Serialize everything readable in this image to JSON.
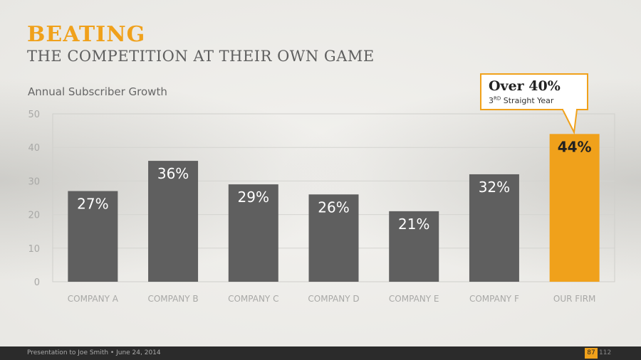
{
  "header": {
    "title": "BEATING",
    "subtitle": "THE COMPETITION AT THEIR OWN GAME"
  },
  "chart_data": {
    "type": "bar",
    "title": "Annual Subscriber Growth",
    "categories": [
      "COMPANY A",
      "COMPANY B",
      "COMPANY C",
      "COMPANY D",
      "COMPANY E",
      "COMPANY F",
      "OUR FIRM"
    ],
    "values": [
      27,
      36,
      29,
      26,
      21,
      32,
      44
    ],
    "labels": [
      "27%",
      "36%",
      "29%",
      "26%",
      "21%",
      "32%",
      "44%"
    ],
    "yticks": [
      "0",
      "10",
      "20",
      "30",
      "40",
      "50"
    ],
    "ylim": [
      0,
      50
    ],
    "grid": true,
    "highlight_index": 6,
    "colors": {
      "bar": "#5f5f5f",
      "highlight": "#f0a11b",
      "grid": "#d4d4d0",
      "tick_text": "#a8a8a6",
      "label": "#ffffff",
      "highlight_label": "#222222"
    }
  },
  "callout": {
    "title": "Over 40%",
    "note_prefix": "3",
    "note_superscript": "RD",
    "note_suffix": " Straight Year"
  },
  "footer": {
    "text": "Presentation to Joe Smith • June 24, 2014",
    "page": "87",
    "total": "112"
  },
  "colors": {
    "accent": "#f0a11b",
    "footer_bg": "#2b2b2b"
  }
}
